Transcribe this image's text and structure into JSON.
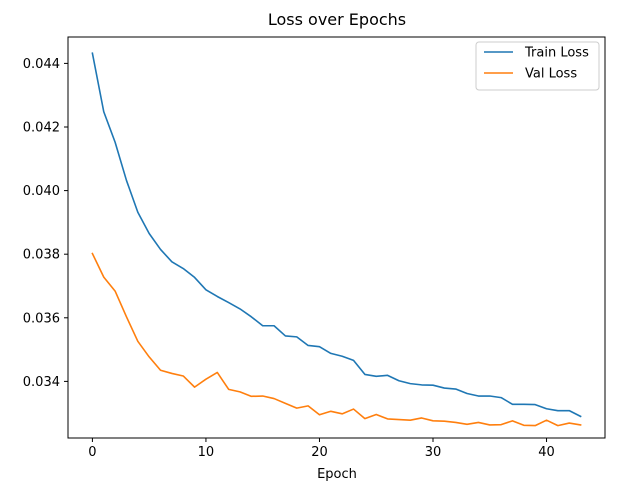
{
  "chart_data": {
    "type": "line",
    "title": "Loss over Epochs",
    "xlabel": "Epoch",
    "ylabel": "",
    "xlim": [
      -2.15,
      45.15
    ],
    "ylim": [
      0.03222,
      0.04483
    ],
    "xticks": [
      0,
      10,
      20,
      30,
      40
    ],
    "yticks": [
      0.034,
      0.036,
      0.038,
      0.04,
      0.042,
      0.044
    ],
    "ytick_labels": [
      "0.034",
      "0.036",
      "0.038",
      "0.040",
      "0.042",
      "0.044"
    ],
    "grid": false,
    "legend_position": "top-right",
    "x": [
      0,
      1,
      2,
      3,
      4,
      5,
      6,
      7,
      8,
      9,
      10,
      11,
      12,
      13,
      14,
      15,
      16,
      17,
      18,
      19,
      20,
      21,
      22,
      23,
      24,
      25,
      26,
      27,
      28,
      29,
      30,
      31,
      32,
      33,
      34,
      35,
      36,
      37,
      38,
      39,
      40,
      41,
      42,
      43
    ],
    "series": [
      {
        "name": "Train Loss",
        "color": "#1f77b4",
        "values": [
          0.04432,
          0.04248,
          0.04152,
          0.04032,
          0.03932,
          0.03865,
          0.03815,
          0.03776,
          0.03755,
          0.03727,
          0.03688,
          0.03667,
          0.03648,
          0.03628,
          0.03603,
          0.03575,
          0.03575,
          0.03543,
          0.0354,
          0.03513,
          0.03509,
          0.03488,
          0.03479,
          0.03466,
          0.03422,
          0.03416,
          0.03419,
          0.03402,
          0.03393,
          0.03389,
          0.03388,
          0.03379,
          0.03376,
          0.03362,
          0.03354,
          0.03354,
          0.03349,
          0.03328,
          0.03328,
          0.03327,
          0.03314,
          0.03308,
          0.03308,
          0.0329
        ]
      },
      {
        "name": "Val Loss",
        "color": "#ff7f0e",
        "values": [
          0.03802,
          0.03728,
          0.03684,
          0.03603,
          0.03526,
          0.03477,
          0.03435,
          0.03425,
          0.03417,
          0.03382,
          0.03407,
          0.03428,
          0.03375,
          0.03367,
          0.03353,
          0.03354,
          0.03346,
          0.03331,
          0.03316,
          0.03323,
          0.03295,
          0.03306,
          0.03298,
          0.03313,
          0.03283,
          0.03296,
          0.03282,
          0.0328,
          0.03278,
          0.03285,
          0.03276,
          0.03275,
          0.03271,
          0.03265,
          0.03271,
          0.03263,
          0.03264,
          0.03276,
          0.03262,
          0.03261,
          0.03278,
          0.03261,
          0.03269,
          0.03263
        ]
      }
    ]
  }
}
